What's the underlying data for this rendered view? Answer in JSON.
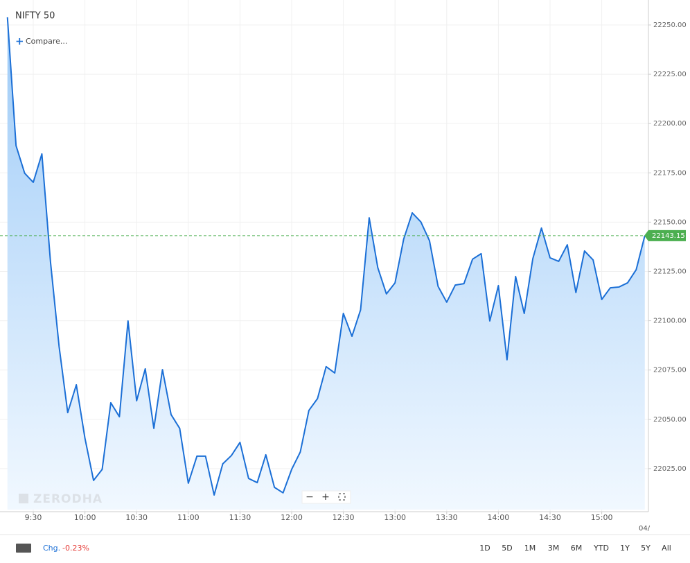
{
  "chart_data": {
    "type": "area",
    "title": "NIFTY 50",
    "compare": "Compare...",
    "watermark": "ZERODHA",
    "color": "#1b6fd6",
    "last_price": 22143.15,
    "last_price_color": "#4caf50",
    "date_label": "04/",
    "change_label": "Chg.",
    "change": "-0.23%",
    "ranges": [
      "1D",
      "5D",
      "1M",
      "3M",
      "6M",
      "YTD",
      "1Y",
      "5Y",
      "All"
    ],
    "grid": true,
    "xlim": [
      552.7,
      926.7
    ],
    "ylim": [
      22004.2,
      22260.9
    ],
    "xticks": [
      {
        "value": 570,
        "label": "9:30"
      },
      {
        "value": 600,
        "label": "10:00"
      },
      {
        "value": 630,
        "label": "10:30"
      },
      {
        "value": 660,
        "label": "11:00"
      },
      {
        "value": 690,
        "label": "11:30"
      },
      {
        "value": 720,
        "label": "12:00"
      },
      {
        "value": 750,
        "label": "12:30"
      },
      {
        "value": 780,
        "label": "13:00"
      },
      {
        "value": 810,
        "label": "13:30"
      },
      {
        "value": 840,
        "label": "14:00"
      },
      {
        "value": 870,
        "label": "14:30"
      },
      {
        "value": 900,
        "label": "15:00"
      }
    ],
    "yticks": [
      {
        "value": 22025,
        "label": "22025.00"
      },
      {
        "value": 22050,
        "label": "22050.00"
      },
      {
        "value": 22075,
        "label": "22075.00"
      },
      {
        "value": 22100,
        "label": "22100.00"
      },
      {
        "value": 22125,
        "label": "22125.00"
      },
      {
        "value": 22150,
        "label": "22150.00"
      },
      {
        "value": 22175,
        "label": "22175.00"
      },
      {
        "value": 22200,
        "label": "22200.00"
      },
      {
        "value": 22225,
        "label": "22225.00"
      },
      {
        "value": 22250,
        "label": "22250.00"
      }
    ],
    "x": [
      555,
      560,
      565,
      570,
      575,
      580,
      585,
      590,
      595,
      600,
      605,
      610,
      615,
      620,
      625,
      630,
      635,
      640,
      645,
      650,
      655,
      660,
      665,
      670,
      675,
      680,
      685,
      690,
      695,
      700,
      705,
      710,
      715,
      720,
      725,
      730,
      735,
      740,
      745,
      750,
      755,
      760,
      765,
      770,
      775,
      780,
      785,
      790,
      795,
      800,
      805,
      810,
      815,
      820,
      825,
      830,
      835,
      840,
      845,
      850,
      855,
      860,
      865,
      870,
      875,
      880,
      885,
      890,
      895,
      900,
      905,
      910,
      915,
      920,
      925
    ],
    "values": [
      22253.9,
      22188.8,
      22174.8,
      22170.2,
      22184.6,
      22129.8,
      22086.9,
      22053.4,
      22067.5,
      22040.4,
      22019.0,
      22024.6,
      22058.4,
      22051.3,
      22099.9,
      22059.4,
      22075.6,
      22045.4,
      22075.2,
      22052.4,
      22045.4,
      22017.6,
      22031.3,
      22031.3,
      22011.6,
      22027.4,
      22031.6,
      22038.3,
      22020.0,
      22017.9,
      22032.0,
      22015.5,
      22012.7,
      22024.6,
      22033.4,
      22054.5,
      22060.5,
      22076.7,
      22073.5,
      22103.7,
      22092.1,
      22105.5,
      22152.2,
      22126.9,
      22113.6,
      22119.2,
      22141.3,
      22154.7,
      22150.1,
      22140.6,
      22117.4,
      22109.4,
      22118.1,
      22118.8,
      22131.2,
      22134.0,
      22099.9,
      22117.8,
      22080.2,
      22122.4,
      22103.7,
      22131.5,
      22147.0,
      22131.9,
      22130.1,
      22138.5,
      22114.3,
      22135.4,
      22130.8,
      22110.8,
      22116.7,
      22117.1,
      22119.2,
      22125.9,
      22143.15
    ]
  }
}
